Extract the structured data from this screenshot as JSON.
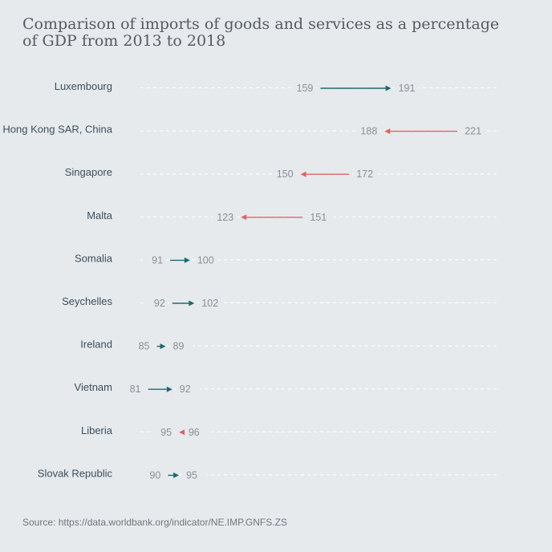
{
  "title": {
    "line1": "Comparison of imports of goods and services as a percentage",
    "line2": "of GDP from 2013 to 2018"
  },
  "source": "Source: https://data.worldbank.org/indicator/NE.IMP.GNFS.ZS",
  "colors": {
    "increase": "#1f6872",
    "decrease": "#e2625f",
    "label": "#3d4f5c",
    "value": "#8a9096",
    "guide": "#ffffff"
  },
  "chart_data": {
    "type": "arrow-dumbbell",
    "title": "Comparison of imports of goods and services as a percentage of GDP from 2013 to 2018",
    "from_label": "2013",
    "to_label": "2018",
    "unit": "% of GDP",
    "xlim": [
      60,
      230
    ],
    "grid": "dashed horizontal guides per row",
    "series": [
      {
        "name": "Luxembourg",
        "from": 159,
        "to": 191
      },
      {
        "name": "Hong Kong SAR, China",
        "from": 221,
        "to": 188
      },
      {
        "name": "Singapore",
        "from": 172,
        "to": 150
      },
      {
        "name": "Malta",
        "from": 151,
        "to": 123
      },
      {
        "name": "Somalia",
        "from": 91,
        "to": 100
      },
      {
        "name": "Seychelles",
        "from": 92,
        "to": 102
      },
      {
        "name": "Ireland",
        "from": 85,
        "to": 89
      },
      {
        "name": "Vietnam",
        "from": 81,
        "to": 92
      },
      {
        "name": "Liberia",
        "from": 96,
        "to": 95
      },
      {
        "name": "Slovak Republic",
        "from": 90,
        "to": 95
      }
    ]
  }
}
